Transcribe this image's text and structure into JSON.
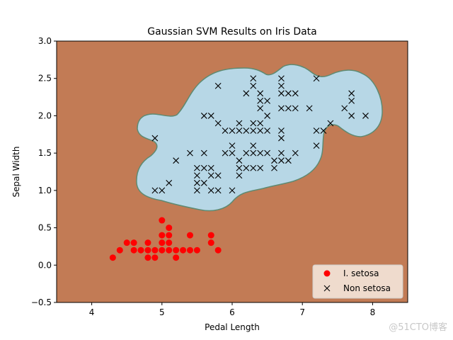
{
  "chart_data": {
    "type": "scatter",
    "title": "Gaussian SVM Results on Iris Data",
    "xlabel": "Pedal Length",
    "ylabel": "Sepal Width",
    "xlim": [
      3.5,
      8.5
    ],
    "ylim": [
      -0.5,
      3.0
    ],
    "xticks": [
      "4",
      "5",
      "6",
      "7",
      "8"
    ],
    "yticks": [
      "−0.5",
      "0.0",
      "0.5",
      "1.0",
      "1.5",
      "2.0",
      "2.5",
      "3.0"
    ],
    "grid": false,
    "legend_position": "lower-right",
    "colors": {
      "background_region": "#c27b55",
      "decision_region": "#b7d7e6",
      "setosa_marker": "#ff0000",
      "non_setosa_marker": "#000000"
    },
    "series": [
      {
        "name": "I. setosa",
        "marker": "circle",
        "points": [
          [
            4.3,
            0.1
          ],
          [
            4.4,
            0.2
          ],
          [
            4.5,
            0.3
          ],
          [
            4.6,
            0.2
          ],
          [
            4.6,
            0.3
          ],
          [
            4.7,
            0.2
          ],
          [
            4.8,
            0.1
          ],
          [
            4.8,
            0.2
          ],
          [
            4.8,
            0.3
          ],
          [
            4.9,
            0.1
          ],
          [
            4.9,
            0.2
          ],
          [
            5.0,
            0.2
          ],
          [
            5.0,
            0.3
          ],
          [
            5.0,
            0.4
          ],
          [
            5.0,
            0.6
          ],
          [
            5.1,
            0.2
          ],
          [
            5.1,
            0.3
          ],
          [
            5.1,
            0.4
          ],
          [
            5.1,
            0.5
          ],
          [
            5.2,
            0.1
          ],
          [
            5.2,
            0.2
          ],
          [
            5.3,
            0.2
          ],
          [
            5.4,
            0.2
          ],
          [
            5.4,
            0.4
          ],
          [
            5.5,
            0.2
          ],
          [
            5.7,
            0.3
          ],
          [
            5.7,
            0.4
          ],
          [
            5.8,
            0.2
          ]
        ]
      },
      {
        "name": "Non setosa",
        "marker": "x",
        "points": [
          [
            4.9,
            1.0
          ],
          [
            4.9,
            1.7
          ],
          [
            5.0,
            1.0
          ],
          [
            5.1,
            1.1
          ],
          [
            5.2,
            1.4
          ],
          [
            5.4,
            1.5
          ],
          [
            5.5,
            1.0
          ],
          [
            5.5,
            1.1
          ],
          [
            5.5,
            1.2
          ],
          [
            5.5,
            1.3
          ],
          [
            5.6,
            1.1
          ],
          [
            5.6,
            1.3
          ],
          [
            5.6,
            1.5
          ],
          [
            5.6,
            2.0
          ],
          [
            5.7,
            1.0
          ],
          [
            5.7,
            1.2
          ],
          [
            5.7,
            1.3
          ],
          [
            5.7,
            2.0
          ],
          [
            5.8,
            1.0
          ],
          [
            5.8,
            1.2
          ],
          [
            5.8,
            1.9
          ],
          [
            5.8,
            2.4
          ],
          [
            5.9,
            1.5
          ],
          [
            5.9,
            1.8
          ],
          [
            6.0,
            1.0
          ],
          [
            6.0,
            1.5
          ],
          [
            6.0,
            1.6
          ],
          [
            6.0,
            1.8
          ],
          [
            6.1,
            1.2
          ],
          [
            6.1,
            1.3
          ],
          [
            6.1,
            1.4
          ],
          [
            6.1,
            1.8
          ],
          [
            6.1,
            1.9
          ],
          [
            6.2,
            1.3
          ],
          [
            6.2,
            1.5
          ],
          [
            6.2,
            1.8
          ],
          [
            6.2,
            2.3
          ],
          [
            6.3,
            1.3
          ],
          [
            6.3,
            1.5
          ],
          [
            6.3,
            1.6
          ],
          [
            6.3,
            1.8
          ],
          [
            6.3,
            1.9
          ],
          [
            6.3,
            2.4
          ],
          [
            6.3,
            2.5
          ],
          [
            6.4,
            1.3
          ],
          [
            6.4,
            1.5
          ],
          [
            6.4,
            1.8
          ],
          [
            6.4,
            1.9
          ],
          [
            6.4,
            2.1
          ],
          [
            6.4,
            2.2
          ],
          [
            6.4,
            2.3
          ],
          [
            6.5,
            1.5
          ],
          [
            6.5,
            1.8
          ],
          [
            6.5,
            2.0
          ],
          [
            6.5,
            2.2
          ],
          [
            6.6,
            1.3
          ],
          [
            6.6,
            1.4
          ],
          [
            6.7,
            1.4
          ],
          [
            6.7,
            1.5
          ],
          [
            6.7,
            1.7
          ],
          [
            6.7,
            1.8
          ],
          [
            6.7,
            2.1
          ],
          [
            6.7,
            2.3
          ],
          [
            6.7,
            2.4
          ],
          [
            6.7,
            2.5
          ],
          [
            6.8,
            1.4
          ],
          [
            6.8,
            2.1
          ],
          [
            6.8,
            2.3
          ],
          [
            6.9,
            1.5
          ],
          [
            6.9,
            2.1
          ],
          [
            6.9,
            2.3
          ],
          [
            7.1,
            2.1
          ],
          [
            7.2,
            1.6
          ],
          [
            7.2,
            1.8
          ],
          [
            7.2,
            2.5
          ],
          [
            7.3,
            1.8
          ],
          [
            7.4,
            1.9
          ],
          [
            7.6,
            2.1
          ],
          [
            7.7,
            2.0
          ],
          [
            7.7,
            2.2
          ],
          [
            7.7,
            2.3
          ],
          [
            7.9,
            2.0
          ]
        ]
      }
    ]
  },
  "watermark": "@51CTO博客"
}
